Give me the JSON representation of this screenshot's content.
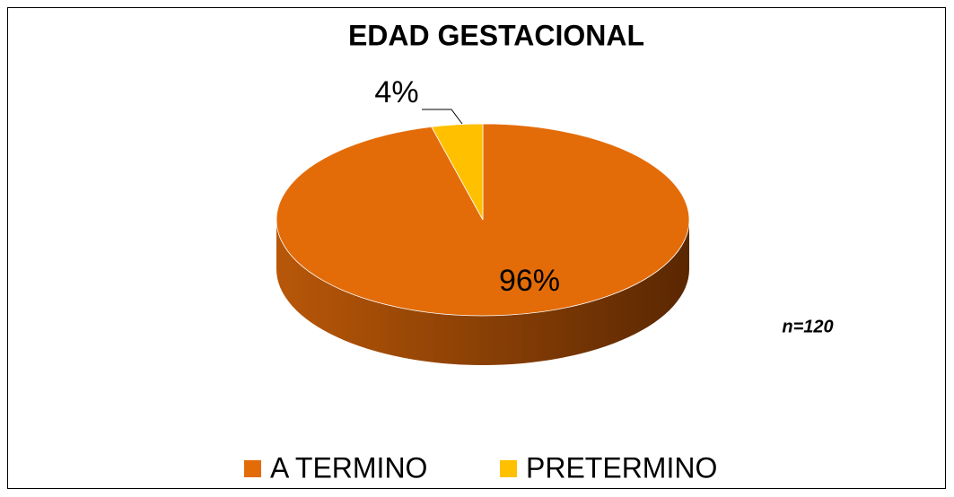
{
  "chart_data": {
    "type": "pie",
    "title": "EDAD GESTACIONAL",
    "categories": [
      "A TERMINO",
      "PRETERMINO"
    ],
    "values": [
      96,
      4
    ],
    "value_labels": [
      "96%",
      "4%"
    ],
    "colors": [
      "#e36c09",
      "#ffc000"
    ],
    "annotation": "n=120",
    "legend": "bottom"
  }
}
